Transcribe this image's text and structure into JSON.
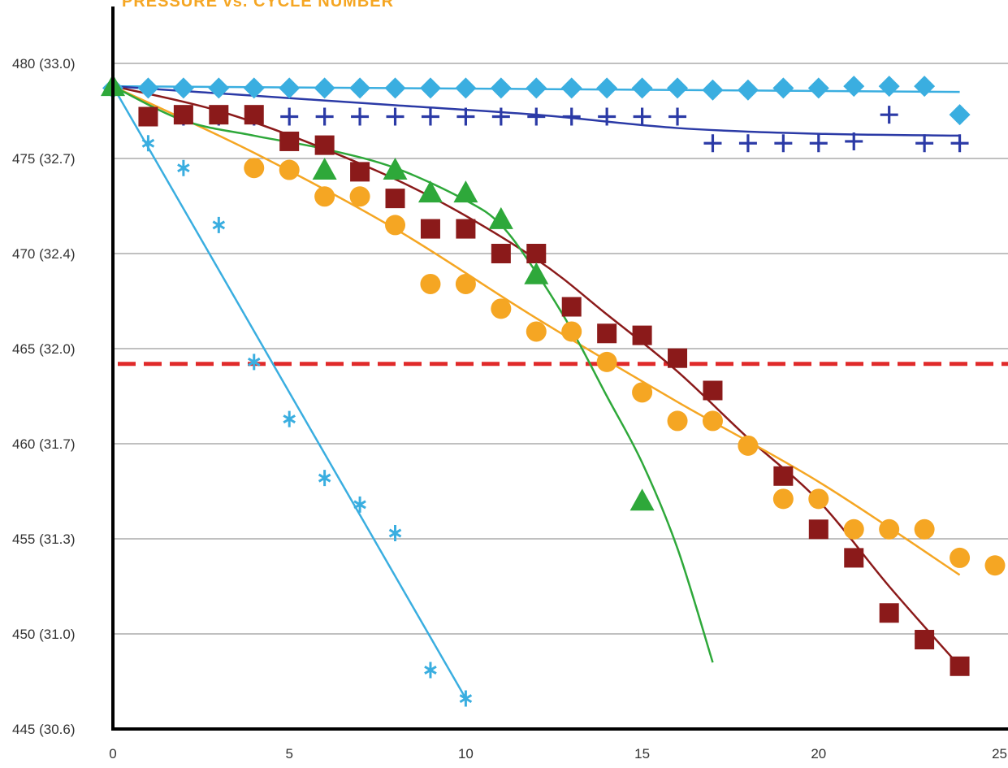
{
  "chart_data": {
    "type": "scatter",
    "title": "PRESSURE vs. CYCLE NUMBER",
    "xlabel": "",
    "ylabel": "",
    "xlim": [
      0,
      25
    ],
    "ylim": [
      445,
      483
    ],
    "x_ticks": [
      "0",
      "5",
      "10",
      "15",
      "20",
      "25"
    ],
    "y_ticks": [
      {
        "value": 480,
        "label": "480 (33.0)"
      },
      {
        "value": 475,
        "label": "475 (32.7)"
      },
      {
        "value": 470,
        "label": "470 (32.4)"
      },
      {
        "value": 465,
        "label": "465 (32.0)"
      },
      {
        "value": 460,
        "label": "460 (31.7)"
      },
      {
        "value": 455,
        "label": "455 (31.3)"
      },
      {
        "value": 450,
        "label": "450 (31.0)"
      },
      {
        "value": 445,
        "label": "445 (30.6)"
      }
    ],
    "grid": "horizontal",
    "reference_line": {
      "y": 464.2,
      "color": "#e02a2a",
      "style": "dashed"
    },
    "series": [
      {
        "marker": "diamond",
        "color": "#3aaee0",
        "x": [
          0,
          1,
          2,
          3,
          4,
          5,
          6,
          7,
          8,
          9,
          10,
          11,
          12,
          13,
          14,
          15,
          16,
          17,
          18,
          19,
          20,
          21,
          22,
          23,
          24
        ],
        "y": [
          478.7,
          478.7,
          478.7,
          478.7,
          478.7,
          478.7,
          478.7,
          478.7,
          478.7,
          478.7,
          478.7,
          478.7,
          478.7,
          478.7,
          478.7,
          478.7,
          478.7,
          478.6,
          478.6,
          478.7,
          478.7,
          478.8,
          478.8,
          478.8,
          477.3
        ],
        "fit": [
          [
            0,
            478.8
          ],
          [
            24,
            478.5
          ]
        ]
      },
      {
        "marker": "plus",
        "color": "#2b3aa6",
        "x": [
          1,
          2,
          3,
          4,
          5,
          6,
          7,
          8,
          9,
          10,
          11,
          12,
          13,
          14,
          15,
          16,
          17,
          18,
          19,
          20,
          21,
          22,
          23,
          24
        ],
        "y": [
          477.2,
          477.2,
          477.2,
          477.2,
          477.2,
          477.2,
          477.2,
          477.2,
          477.2,
          477.2,
          477.2,
          477.2,
          477.2,
          477.2,
          477.2,
          477.2,
          475.8,
          475.8,
          475.8,
          475.8,
          475.9,
          477.3,
          475.8,
          475.8
        ],
        "fit": [
          [
            0,
            478.8
          ],
          [
            4,
            478.3
          ],
          [
            8,
            477.8
          ],
          [
            12,
            477.3
          ],
          [
            16,
            476.6
          ],
          [
            20,
            476.3
          ],
          [
            24,
            476.2
          ]
        ]
      },
      {
        "marker": "square",
        "color": "#8b1a1a",
        "x": [
          1,
          2,
          3,
          4,
          5,
          6,
          7,
          8,
          9,
          10,
          11,
          12,
          13,
          14,
          15,
          16,
          17,
          19,
          20,
          21,
          22,
          23,
          24
        ],
        "y": [
          477.2,
          477.3,
          477.3,
          477.3,
          475.9,
          475.7,
          474.3,
          472.9,
          471.3,
          471.3,
          470.0,
          470.0,
          467.2,
          465.8,
          465.7,
          464.5,
          462.8,
          458.3,
          455.5,
          454.0,
          451.1,
          449.7,
          448.3
        ],
        "fit": [
          [
            0,
            478.8
          ],
          [
            3,
            477.5
          ],
          [
            6,
            475.5
          ],
          [
            9,
            473.0
          ],
          [
            12,
            469.7
          ],
          [
            14,
            466.8
          ],
          [
            16,
            463.8
          ],
          [
            18,
            460.3
          ],
          [
            20,
            457.0
          ],
          [
            22,
            452.5
          ],
          [
            24,
            448.3
          ]
        ]
      },
      {
        "marker": "circle",
        "color": "#f5a623",
        "x": [
          4,
          5,
          6,
          7,
          8,
          9,
          10,
          11,
          12,
          13,
          14,
          15,
          16,
          17,
          18,
          19,
          20,
          21,
          22,
          23,
          24,
          25
        ],
        "y": [
          474.5,
          474.4,
          473.0,
          473.0,
          471.5,
          468.4,
          468.4,
          467.1,
          465.9,
          465.9,
          464.3,
          462.7,
          461.2,
          461.2,
          459.9,
          457.1,
          457.1,
          455.5,
          455.5,
          455.5,
          454.0,
          453.6
        ],
        "fit": [
          [
            0,
            478.8
          ],
          [
            4,
            475.3
          ],
          [
            8,
            471.3
          ],
          [
            12,
            466.6
          ],
          [
            16,
            462.2
          ],
          [
            20,
            458.0
          ],
          [
            24,
            453.1
          ]
        ]
      },
      {
        "marker": "triangle",
        "color": "#2ea83a",
        "x": [
          0,
          6,
          8,
          9,
          10,
          11,
          12,
          15
        ],
        "y": [
          478.8,
          474.4,
          474.4,
          473.2,
          473.2,
          471.8,
          468.9,
          457.0
        ],
        "fit": [
          [
            0,
            478.8
          ],
          [
            2,
            477.0
          ],
          [
            4,
            476.2
          ],
          [
            6,
            475.5
          ],
          [
            8,
            474.5
          ],
          [
            10,
            472.8
          ],
          [
            11,
            471.5
          ],
          [
            12,
            469.0
          ],
          [
            13,
            466.0
          ],
          [
            14,
            462.5
          ],
          [
            15,
            459.0
          ],
          [
            16,
            454.5
          ],
          [
            17,
            448.5
          ]
        ]
      },
      {
        "marker": "asterisk",
        "color": "#3aaee0",
        "x": [
          1,
          2,
          3,
          4,
          5,
          6,
          7,
          8,
          9,
          10
        ],
        "y": [
          475.8,
          474.5,
          471.5,
          464.3,
          461.3,
          458.2,
          456.8,
          455.3,
          448.1,
          446.6
        ],
        "fit": [
          [
            0,
            478.8
          ],
          [
            10,
            446.6
          ]
        ]
      }
    ]
  }
}
